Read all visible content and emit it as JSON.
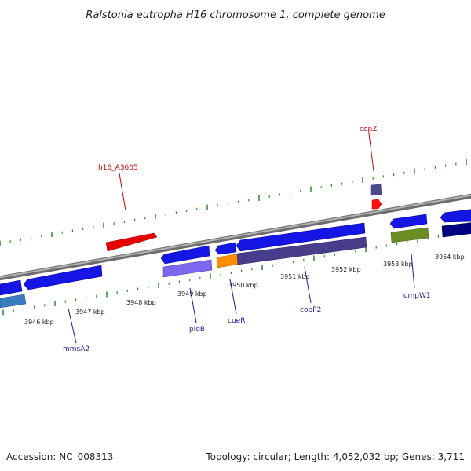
{
  "title": "Ralstonia eutropha H16 chromosome 1, complete genome",
  "footer": {
    "accession": "Accession: NC_008313",
    "stats": "Topology: circular; Length: 4,052,032 bp; Genes: 3,711"
  },
  "colors": {
    "backbone": "#8c8c8c",
    "tick": "#2d8a2d",
    "forward_gene": "#1515e6",
    "label_blue": "#1a1aa8",
    "label_red": "#cc0000"
  },
  "scale_ticks": [
    {
      "label": "3946 kbp"
    },
    {
      "label": "3947 kbp"
    },
    {
      "label": "3948 kbp"
    },
    {
      "label": "3949 kbp"
    },
    {
      "label": "3950 kbp"
    },
    {
      "label": "3951 kbp"
    },
    {
      "label": "3952 kbp"
    },
    {
      "label": "3953 kbp"
    },
    {
      "label": "3954 kbp"
    }
  ],
  "gene_labels": [
    {
      "name": "h16_A3665",
      "color": "#cc0000"
    },
    {
      "name": "copZ",
      "color": "#cc0000"
    },
    {
      "name": "mmsA2",
      "color": "#1a1aa8"
    },
    {
      "name": "pldB",
      "color": "#1a1aa8"
    },
    {
      "name": "cueR",
      "color": "#1a1aa8"
    },
    {
      "name": "copP2",
      "color": "#1a1aa8"
    },
    {
      "name": "ompW1",
      "color": "#1a1aa8"
    }
  ]
}
